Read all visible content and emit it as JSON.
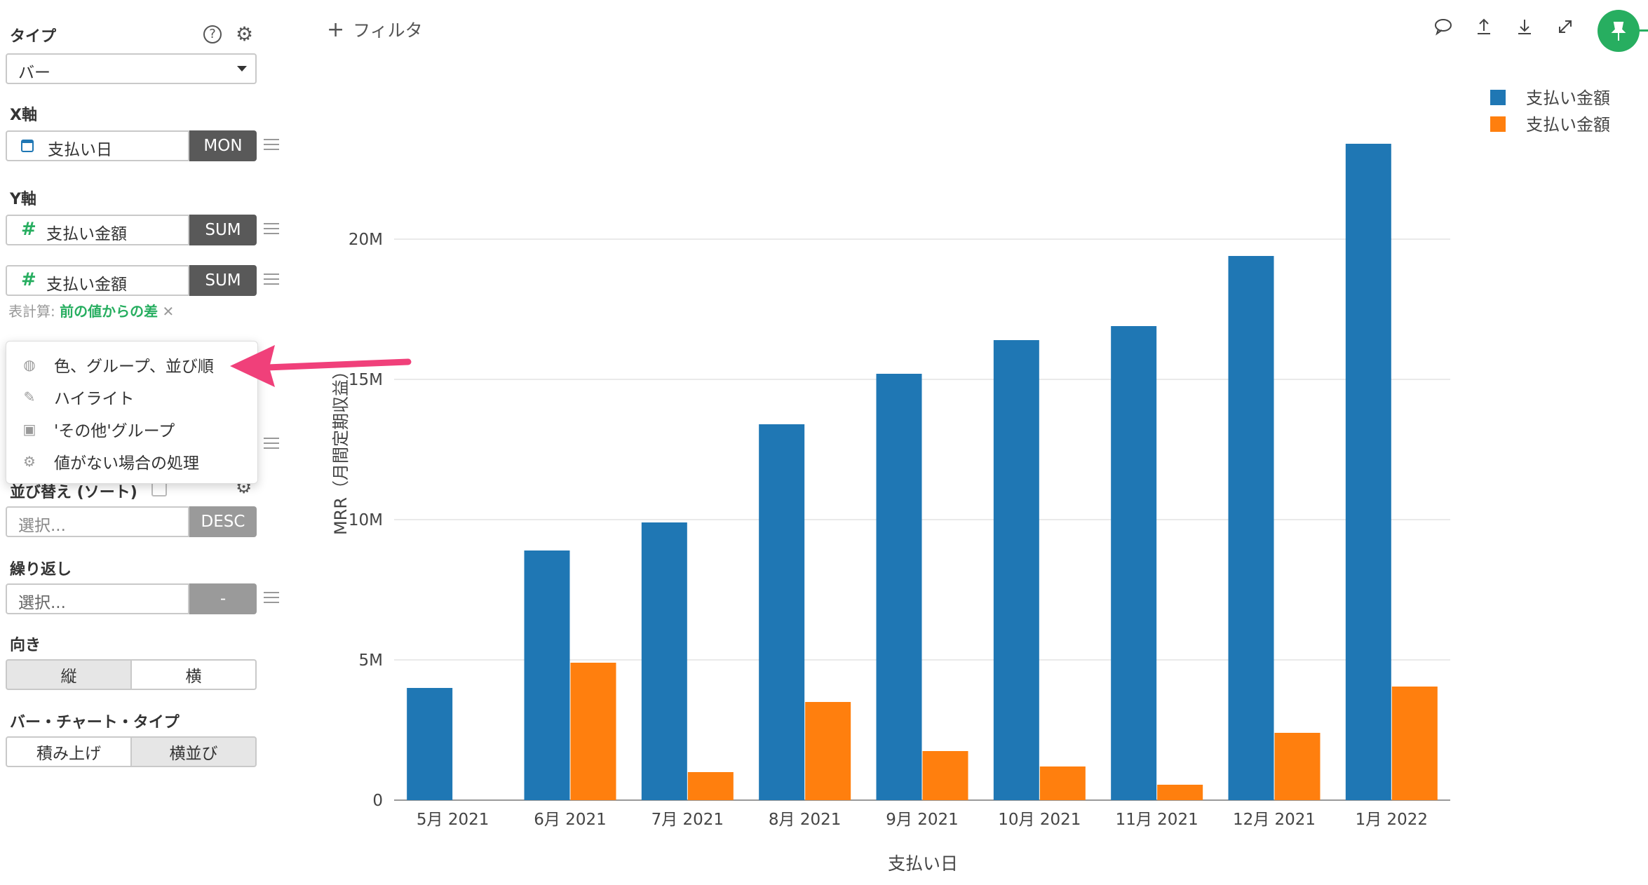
{
  "sidebar": {
    "type_label": "タイプ",
    "type_value": "バー",
    "x_axis_label": "X軸",
    "x_field": "支払い日",
    "x_agg": "MON",
    "y_axis_label": "Y軸",
    "y_fields": [
      {
        "name": "支払い金額",
        "agg": "SUM"
      },
      {
        "name": "支払い金額",
        "agg": "SUM"
      }
    ],
    "table_calc_prefix": "表計算:",
    "table_calc_value": "前の値からの差",
    "sort_label": "並び替え (ソート)",
    "sort_placeholder": "選択...",
    "sort_dir": "DESC",
    "repeat_label": "繰り返し",
    "repeat_placeholder": "選択...",
    "repeat_value": "-",
    "orientation_label": "向き",
    "orientation_options": [
      "縦",
      "横"
    ],
    "orientation_selected": "縦",
    "bar_type_label": "バー・チャート・タイプ",
    "bar_type_options": [
      "積み上げ",
      "横並び"
    ],
    "bar_type_selected": "横並び"
  },
  "menu": {
    "items": [
      {
        "label": "色、グループ、並び順",
        "icon": "palette-icon"
      },
      {
        "label": "ハイライト",
        "icon": "pencil-icon"
      },
      {
        "label": "'その他'グループ",
        "icon": "group-icon"
      },
      {
        "label": "値がない場合の処理",
        "icon": "gear-icon"
      }
    ]
  },
  "toolbar": {
    "filter_label": "フィルタ",
    "icons": [
      "comment-icon",
      "upload-icon",
      "download-icon",
      "expand-icon",
      "pin-icon"
    ]
  },
  "colors": {
    "blue": "#1f77b4",
    "orange": "#ff7f0e",
    "green": "#27ae60",
    "arrow": "#f0407a"
  },
  "chart_data": {
    "type": "bar",
    "categories": [
      "5月 2021",
      "6月 2021",
      "7月 2021",
      "8月 2021",
      "9月 2021",
      "10月 2021",
      "11月 2021",
      "12月 2021",
      "1月 2022"
    ],
    "series": [
      {
        "name": "支払い金額",
        "values": [
          4000000,
          8900000,
          9900000,
          13400000,
          15200000,
          16400000,
          16900000,
          19400000,
          23400000
        ]
      },
      {
        "name": "支払い金額",
        "values": [
          0,
          4900000,
          1000000,
          3500000,
          1750000,
          1200000,
          550000,
          2400000,
          4050000
        ]
      }
    ],
    "xlabel": "支払い日",
    "ylabel": "MRR（月間定期収益）",
    "ylim": [
      0,
      25000000
    ],
    "yticks": [
      "0",
      "5M",
      "10M",
      "15M",
      "20M"
    ],
    "grid": true,
    "legend": "top-right"
  }
}
